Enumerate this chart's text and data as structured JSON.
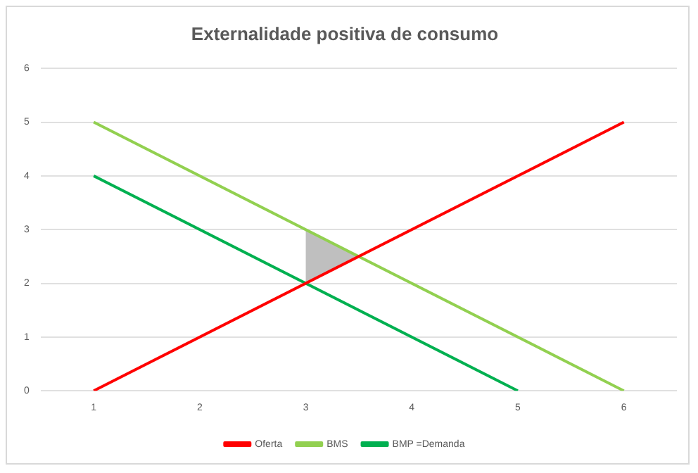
{
  "chart_data": {
    "type": "line",
    "title": "Externalidade positiva de consumo",
    "xlim": [
      0.5,
      6.5
    ],
    "xticks": [
      1,
      2,
      3,
      4,
      5,
      6
    ],
    "ylim": [
      0,
      6
    ],
    "yticks": [
      0,
      1,
      2,
      3,
      4,
      5,
      6
    ],
    "grid": "y",
    "legend": "bottom",
    "marker": "none",
    "series": [
      {
        "name": "Oferta",
        "color": "#ff0000",
        "x": [
          1,
          6
        ],
        "values": [
          0,
          5
        ]
      },
      {
        "name": "BMS",
        "color": "#92d050",
        "x": [
          1,
          6
        ],
        "values": [
          5,
          0
        ]
      },
      {
        "name": "BMP =Demanda",
        "color": "#00b050",
        "x": [
          1,
          5
        ],
        "values": [
          4,
          0
        ]
      },
      {
        "type": "area",
        "color": "#bfbfbf",
        "x": [
          3,
          3,
          3.5,
          3
        ],
        "values": [
          2,
          3,
          2.5,
          2
        ]
      }
    ]
  }
}
